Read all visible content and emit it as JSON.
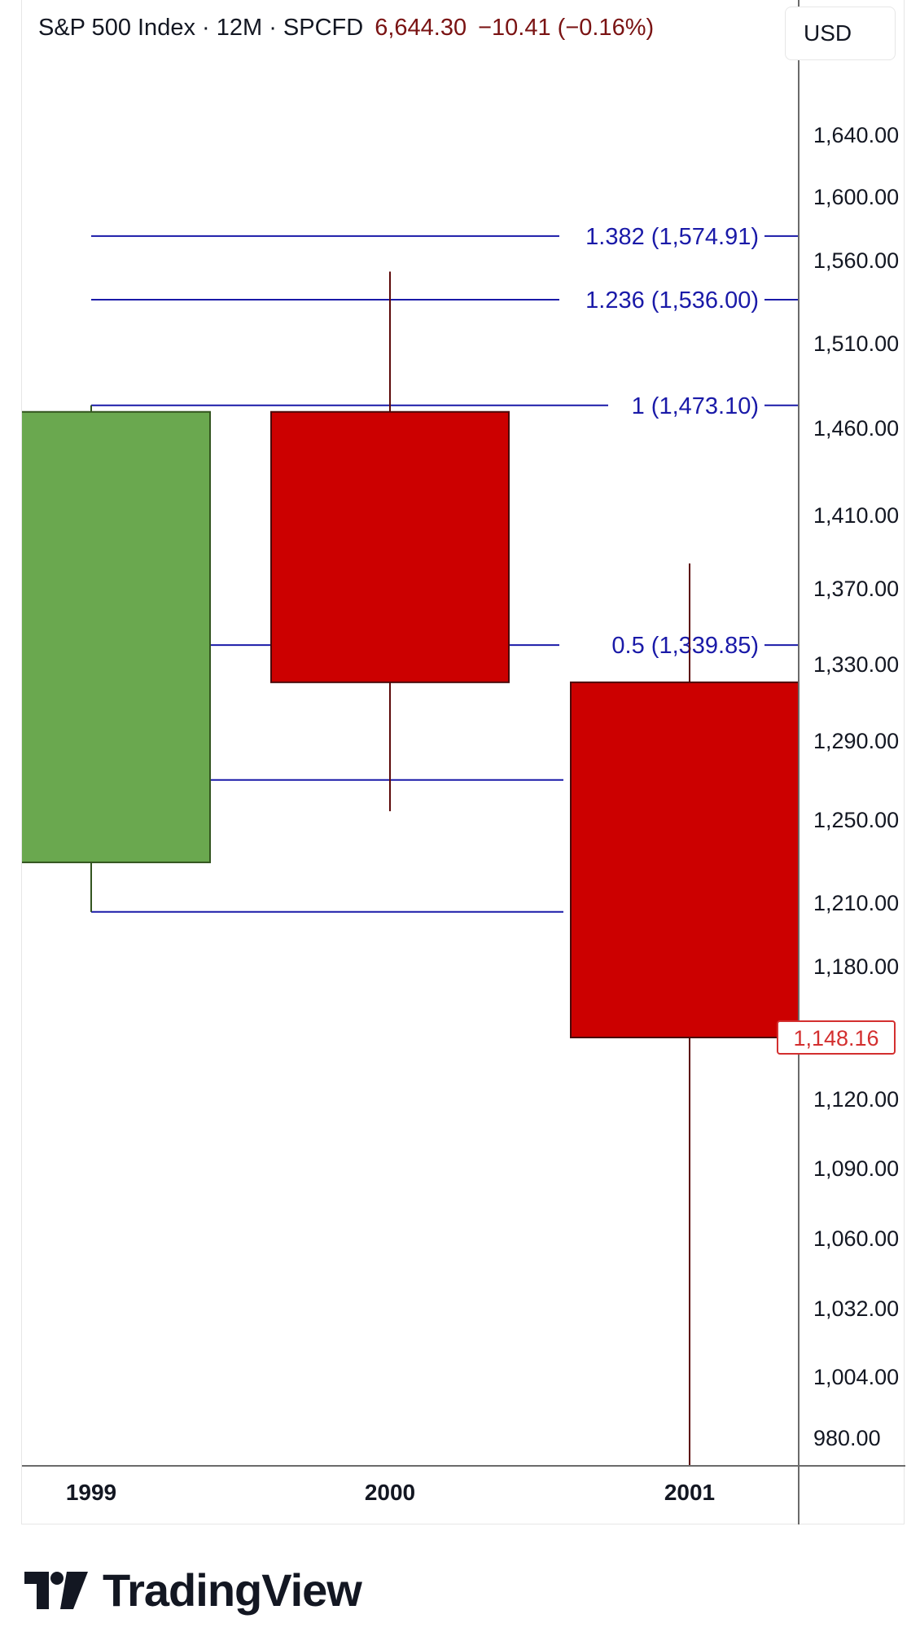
{
  "header": {
    "symbol_line": "S&P 500 Index · 12M · SPCFD",
    "last_price": "6,644.30",
    "change": "−10.41 (−0.16%)",
    "currency": "USD"
  },
  "brand": {
    "name": "TradingView",
    "icon": "tradingview-logo-icon"
  },
  "colors": {
    "up": "#6aa84f",
    "down": "#cc0000",
    "wick": "#5c0a0a",
    "fib": "#1a1aa8",
    "price_label": "#d32f2f"
  },
  "chart_data": {
    "type": "candlestick",
    "title": "",
    "xlabel": "",
    "ylabel": "",
    "x_ticks": [
      "1999",
      "2000",
      "2001"
    ],
    "y_ticks": [
      "1,640.00",
      "1,600.00",
      "1,560.00",
      "1,510.00",
      "1,460.00",
      "1,410.00",
      "1,370.00",
      "1,330.00",
      "1,290.00",
      "1,250.00",
      "1,210.00",
      "1,180.00",
      "1,120.00",
      "1,090.00",
      "1,060.00",
      "1,032.00",
      "1,004.00",
      "980.00"
    ],
    "ylim": [
      960,
      1680
    ],
    "last_price_label": "1,148.16",
    "candles": [
      {
        "x": "1999",
        "open": 1229.23,
        "high": 1473.1,
        "low": 1205.46,
        "close": 1469.25,
        "direction": "up"
      },
      {
        "x": "2000",
        "open": 1469.25,
        "high": 1552.87,
        "low": 1254.07,
        "close": 1320.28,
        "direction": "down"
      },
      {
        "x": "2001",
        "open": 1320.28,
        "high": 1383.37,
        "low": 944.75,
        "close": 1148.16,
        "direction": "down"
      }
    ],
    "fib_levels": [
      {
        "ratio": 1.382,
        "price": 1574.91,
        "label": "1.382 (1,574.91)"
      },
      {
        "ratio": 1.236,
        "price": 1536.0,
        "label": "1.236 (1,536.00)"
      },
      {
        "ratio": 1,
        "price": 1473.1,
        "label": "1 (1,473.10)"
      },
      {
        "ratio": 0.5,
        "price": 1339.85,
        "label": "0.5 (1,339.85)"
      },
      {
        "ratio": 0.236,
        "price": 1269.9,
        "label": ""
      },
      {
        "ratio": 0,
        "price": 1205.46,
        "label": ""
      }
    ]
  }
}
